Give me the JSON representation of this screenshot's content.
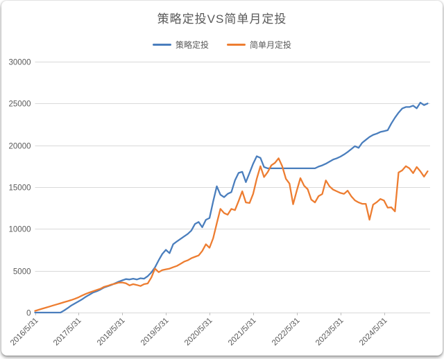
{
  "card": {
    "title": "策略定投VS简单月定投"
  },
  "legend": [
    {
      "label": "策略定投",
      "color": "#4A7EBD"
    },
    {
      "label": "简单月定投",
      "color": "#ED7D31"
    }
  ],
  "colors": {
    "grid": "#D9D9D9",
    "tick": "#BFBFBF",
    "axis_text": "#595959",
    "title_text": "#595959",
    "background": "#FFFFFF"
  },
  "chart_data": {
    "type": "line",
    "title": "策略定投VS简单月定投",
    "xlabel": "",
    "ylabel": "",
    "ylim": [
      0,
      30000
    ],
    "y_ticks": [
      0,
      5000,
      10000,
      15000,
      20000,
      25000,
      30000
    ],
    "x_tick_labels": [
      "2016/5/31",
      "2017/5/31",
      "2018/5/31",
      "2019/5/31",
      "2020/5/31",
      "2021/5/31",
      "2022/5/31",
      "2023/5/31",
      "2024/5/31"
    ],
    "x_tick_month_indices": [
      0,
      12,
      24,
      36,
      48,
      60,
      72,
      84,
      96
    ],
    "x_unit": "month",
    "grid": true,
    "legend_position": "top",
    "series": [
      {
        "name": "策略定投",
        "color": "#4A7EBD",
        "values": [
          0,
          0,
          0,
          0,
          0,
          0,
          0,
          0,
          250,
          550,
          850,
          1100,
          1350,
          1600,
          1900,
          2150,
          2400,
          2550,
          2750,
          3000,
          3150,
          3300,
          3500,
          3700,
          3850,
          4000,
          3950,
          4050,
          3950,
          4100,
          4050,
          4350,
          4800,
          5400,
          6250,
          7000,
          7500,
          7100,
          8170,
          8500,
          8800,
          9100,
          9400,
          9800,
          10600,
          10830,
          10200,
          11100,
          11300,
          13300,
          15100,
          14100,
          13800,
          14200,
          14400,
          15800,
          16700,
          16830,
          15600,
          16700,
          17800,
          18700,
          18500,
          17400,
          17250,
          17250,
          17250,
          17250,
          17250,
          17250,
          17250,
          17250,
          17250,
          17250,
          17250,
          17250,
          17250,
          17250,
          17450,
          17600,
          17800,
          18050,
          18300,
          18450,
          18650,
          18900,
          19200,
          19550,
          19900,
          19700,
          20300,
          20650,
          21000,
          21250,
          21400,
          21600,
          21700,
          21800,
          22600,
          23300,
          23900,
          24400,
          24580,
          24580,
          24750,
          24420,
          25100,
          24800,
          25000
        ]
      },
      {
        "name": "简单月定投",
        "color": "#ED7D31",
        "values": [
          200,
          330,
          460,
          590,
          720,
          850,
          980,
          1110,
          1240,
          1370,
          1500,
          1650,
          1830,
          2050,
          2250,
          2400,
          2550,
          2700,
          2850,
          3080,
          3200,
          3350,
          3450,
          3580,
          3600,
          3500,
          3250,
          3400,
          3300,
          3170,
          3400,
          3480,
          4200,
          5250,
          4830,
          5080,
          5170,
          5250,
          5420,
          5580,
          5830,
          6080,
          6250,
          6500,
          6670,
          6830,
          7360,
          8170,
          7750,
          8900,
          10670,
          12400,
          11900,
          11700,
          12400,
          12250,
          13330,
          14500,
          13170,
          13100,
          14200,
          16000,
          17500,
          16200,
          16800,
          17600,
          17900,
          18450,
          17500,
          16000,
          15420,
          12950,
          14580,
          16080,
          15170,
          14750,
          13500,
          13170,
          13920,
          14170,
          15800,
          15100,
          14700,
          14500,
          14300,
          14200,
          14580,
          13900,
          13420,
          13170,
          13000,
          13000,
          11100,
          12900,
          13200,
          13580,
          13400,
          12550,
          12580,
          12100,
          16750,
          17000,
          17500,
          17250,
          16670,
          17400,
          16900,
          16250,
          16900
        ]
      }
    ]
  }
}
